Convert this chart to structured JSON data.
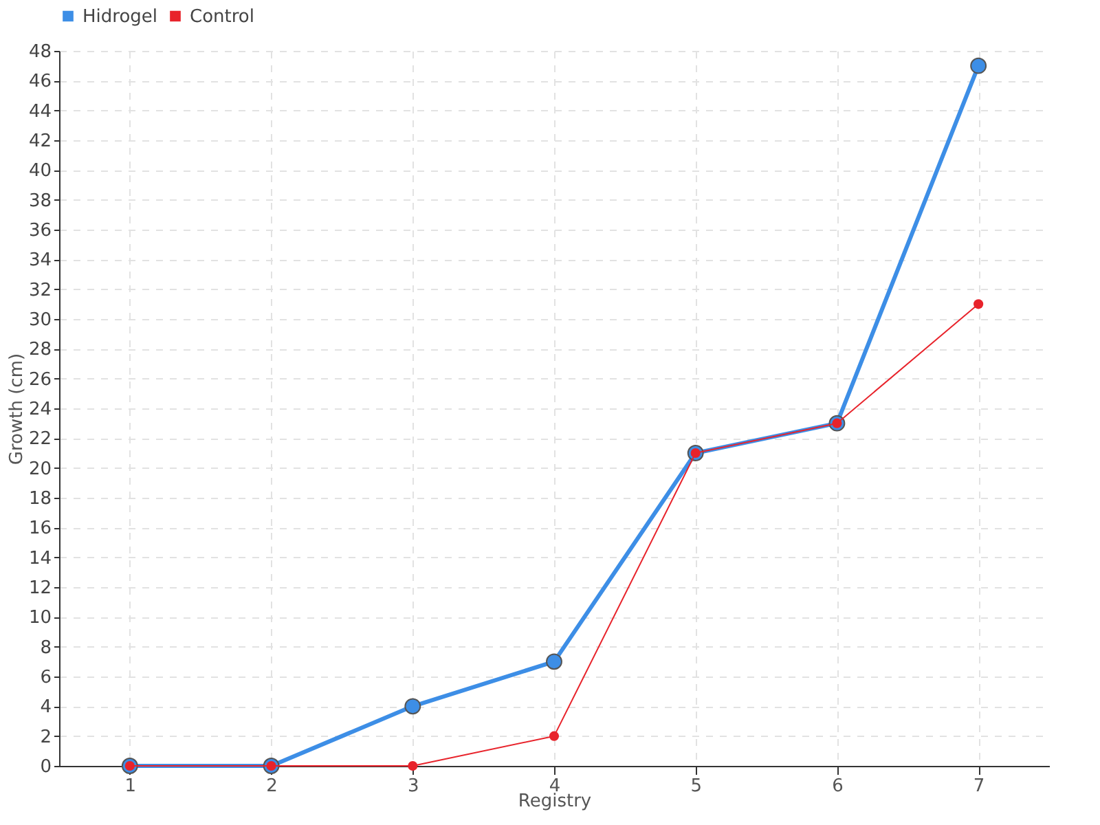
{
  "chart_data": {
    "type": "line",
    "xlabel": "Registry",
    "ylabel": "Growth (cm)",
    "categories": [
      "1",
      "2",
      "3",
      "4",
      "5",
      "6",
      "7"
    ],
    "series": [
      {
        "name": "Hidrogel",
        "color": "#3d8ee6",
        "values": [
          0,
          0,
          4,
          7,
          21,
          23,
          47
        ]
      },
      {
        "name": "Control",
        "color": "#e8232b",
        "values": [
          0,
          0,
          0,
          2,
          21,
          23,
          31
        ]
      }
    ],
    "ylim": [
      0,
      48
    ],
    "yticks": [
      0,
      2,
      4,
      6,
      8,
      10,
      12,
      14,
      16,
      18,
      20,
      22,
      24,
      26,
      28,
      30,
      32,
      34,
      36,
      38,
      40,
      42,
      44,
      46,
      48
    ],
    "grid": true,
    "legend": "top left",
    "marker": "circle",
    "line_style": "solid"
  }
}
